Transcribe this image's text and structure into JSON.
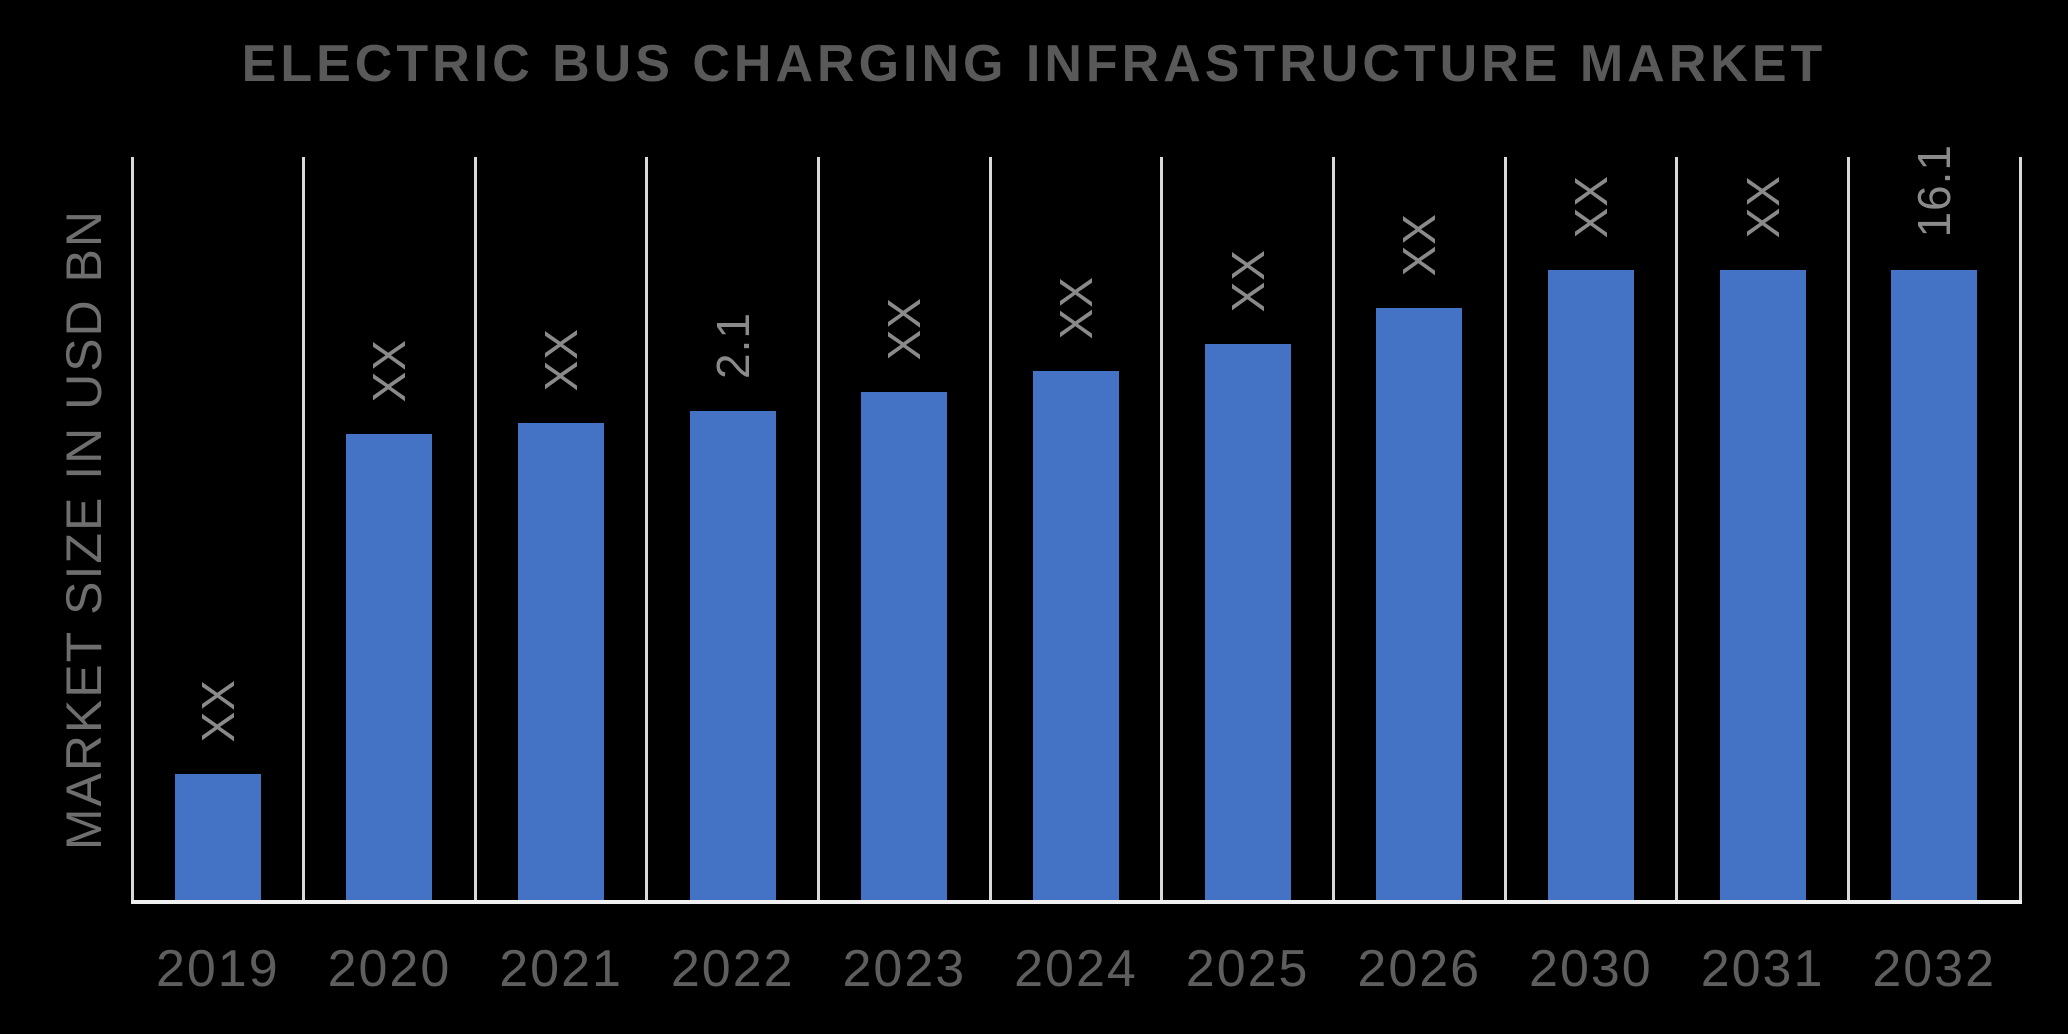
{
  "page": {
    "background_color": "#000000"
  },
  "chart_data": {
    "type": "bar",
    "title": "ELECTRIC BUS CHARGING INFRASTRUCTURE MARKET",
    "ylabel": "MARKET SIZE IN USD BN",
    "xlabel": "",
    "categories": [
      "2019",
      "2020",
      "2021",
      "2022",
      "2023",
      "2024",
      "2025",
      "2026",
      "2030",
      "2031",
      "2032"
    ],
    "series": [
      {
        "name": "Market Size in USD BN",
        "unit": "USD BN",
        "labels": [
          "XX",
          "XX",
          "XX",
          "2.1",
          "XX",
          "XX",
          "XX",
          "XX",
          "XX",
          "XX",
          "16.1"
        ],
        "values": [
          null,
          null,
          null,
          2.1,
          null,
          null,
          null,
          null,
          null,
          null,
          16.1
        ],
        "bar_height_fraction": [
          0.172,
          0.628,
          0.643,
          0.659,
          0.685,
          0.713,
          0.749,
          0.797,
          0.848,
          0.848,
          0.848
        ]
      }
    ],
    "known_values": {
      "2022": 2.1,
      "2032": 16.1
    },
    "value_label_rotation_deg": 90,
    "legend": "none",
    "grid": "vertical-column-separators",
    "ylim_labeled": false,
    "colors": {
      "bar": "#4472C4",
      "gridline": "#D9D9D9",
      "axis_line": "#F0F0F0",
      "title_text": "#595959",
      "axis_title_text": "#6E6E6E",
      "tick_label_text": "#5E5E5E",
      "data_label_text": "#8A8A8A",
      "background": "#000000"
    }
  }
}
